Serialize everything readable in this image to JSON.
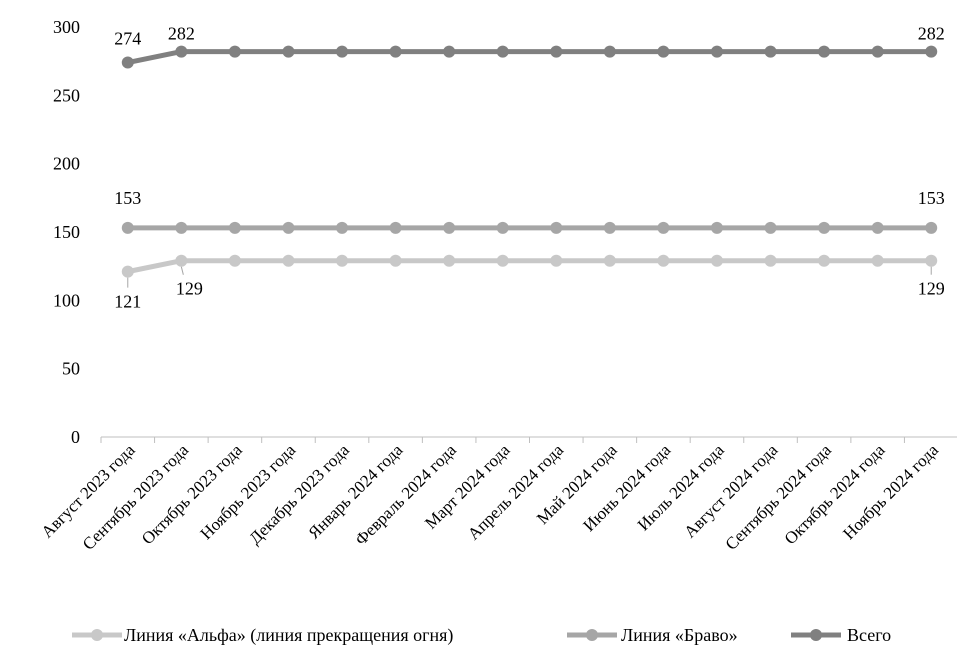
{
  "chart_data": {
    "type": "line",
    "title": "",
    "xlabel": "",
    "ylabel": "",
    "ylim": [
      0,
      300
    ],
    "yticks": [
      0,
      50,
      100,
      150,
      200,
      250,
      300
    ],
    "grid": false,
    "legend_position": "bottom",
    "categories": [
      "Август 2023 года",
      "Сентябрь 2023 года",
      "Октябрь 2023 года",
      "Ноябрь 2023 года",
      "Декабрь 2023 года",
      "Январь 2024 года",
      "Февраль 2024 года",
      "Март 2024 года",
      "Апрель 2024 года",
      "Май 2024 года",
      "Июнь 2024 года",
      "Июль 2024 года",
      "Август 2024 года",
      "Сентябрь 2024 года",
      "Октябрь 2024 года",
      "Ноябрь 2024 года"
    ],
    "series": [
      {
        "name": "Линия «Альфа» (линия прекращения огня)",
        "color": "#c8c8c8",
        "values": [
          121,
          129,
          129,
          129,
          129,
          129,
          129,
          129,
          129,
          129,
          129,
          129,
          129,
          129,
          129,
          129
        ],
        "labeled_points": [
          0,
          1,
          15
        ],
        "label_side": "below"
      },
      {
        "name": "Линия «Браво»",
        "color": "#a6a6a6",
        "values": [
          153,
          153,
          153,
          153,
          153,
          153,
          153,
          153,
          153,
          153,
          153,
          153,
          153,
          153,
          153,
          153
        ],
        "labeled_points": [
          0,
          15
        ],
        "label_side": "above"
      },
      {
        "name": "Всего",
        "color": "#808080",
        "values": [
          274,
          282,
          282,
          282,
          282,
          282,
          282,
          282,
          282,
          282,
          282,
          282,
          282,
          282,
          282,
          282
        ],
        "labeled_points": [
          0,
          1,
          15
        ],
        "label_side": "above"
      }
    ]
  }
}
